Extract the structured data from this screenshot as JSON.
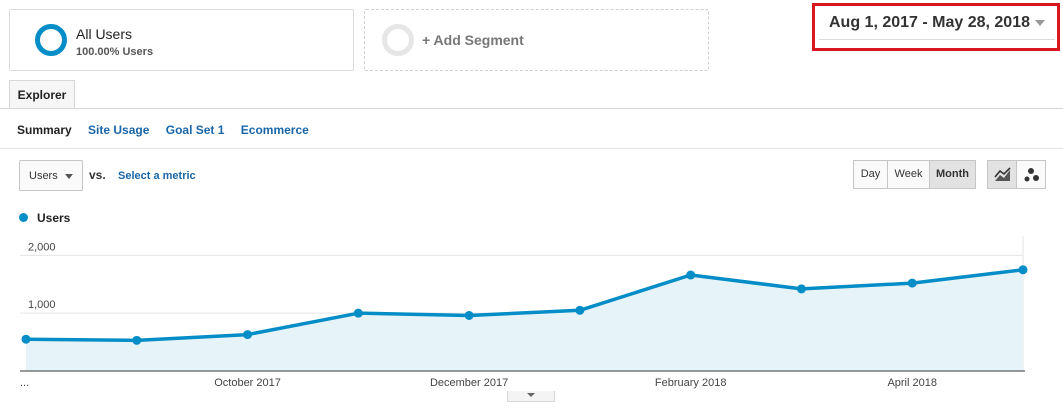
{
  "segments": {
    "all_users": {
      "title": "All Users",
      "subtitle": "100.00% Users"
    },
    "add_segment": {
      "label": "+ Add Segment"
    }
  },
  "date_range": {
    "label": "Aug 1, 2017 - May 28, 2018"
  },
  "tabs": {
    "explorer": "Explorer"
  },
  "subnav": [
    "Summary",
    "Site Usage",
    "Goal Set 1",
    "Ecommerce"
  ],
  "metric": {
    "selected": "Users",
    "vs": "vs.",
    "select_link": "Select a metric"
  },
  "period_buttons": {
    "day": "Day",
    "week": "Week",
    "month": "Month",
    "active": "Month"
  },
  "view_icons": {
    "line": "line-chart-icon",
    "motion": "motion-chart-icon"
  },
  "colors": {
    "accent": "#058dc7",
    "fill": "#e6f4fa",
    "highlight": "#d7161d",
    "link": "#1a66a8"
  },
  "chart_data": {
    "type": "area",
    "series": [
      {
        "name": "Users",
        "values": [
          550,
          530,
          630,
          1000,
          960,
          1050,
          1660,
          1420,
          1520,
          1750
        ]
      }
    ],
    "x": [
      "2017-08",
      "2017-09",
      "2017-10",
      "2017-11",
      "2017-12",
      "2018-01",
      "2018-02",
      "2018-03",
      "2018-04",
      "2018-05"
    ],
    "ytick_labels": [
      "1,000",
      "2,000"
    ],
    "yticks": [
      1000,
      2000
    ],
    "xtick_labels": [
      "...",
      "October 2017",
      "December 2017",
      "February 2018",
      "April 2018"
    ],
    "xtick_index": [
      0,
      2,
      4,
      6,
      8
    ],
    "ylim": [
      0,
      2300
    ],
    "grid": true,
    "legend": "top-left"
  }
}
